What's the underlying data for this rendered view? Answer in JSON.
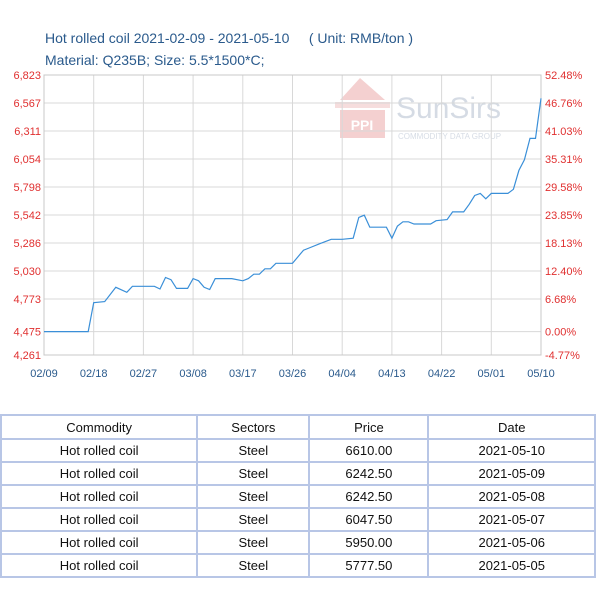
{
  "header": {
    "title_line1": "Hot rolled coil 2021-02-09 - 2021-05-10     ( Unit: RMB/ton )",
    "title_line2": "Material: Q235B; Size: 5.5*1500*C;"
  },
  "watermark": {
    "brand": "SunSirs",
    "tagline": "COMMODITY DATA GROUP",
    "logo_text": "PPI"
  },
  "chart_data": {
    "type": "line",
    "title": "Hot rolled coil 2021-02-09 - 2021-05-10",
    "unit": "RMB/ton",
    "baseline_price": 4475,
    "y_left_ticks": [
      "4,261",
      "4,475",
      "4,773",
      "5,030",
      "5,286",
      "5,542",
      "5,798",
      "6,054",
      "6,311",
      "6,567",
      "6,823"
    ],
    "y_left_values": [
      4261,
      4475,
      4773,
      5030,
      5286,
      5542,
      5798,
      6054,
      6311,
      6567,
      6823
    ],
    "y_right_ticks": [
      "-4.77%",
      "0.00%",
      "6.68%",
      "12.40%",
      "18.13%",
      "23.85%",
      "29.58%",
      "35.31%",
      "41.03%",
      "46.76%",
      "52.48%"
    ],
    "ylim": [
      4261,
      6823
    ],
    "x_ticks": [
      "02/09",
      "02/18",
      "02/27",
      "03/08",
      "03/17",
      "03/26",
      "04/04",
      "04/13",
      "04/22",
      "05/01",
      "05/10"
    ],
    "x_start": "2021-02-09",
    "x_end": "2021-05-10",
    "grid": true,
    "series": [
      {
        "color": "#3a8fd8",
        "points": [
          [
            "2021-02-09",
            4475
          ],
          [
            "2021-02-17",
            4475
          ],
          [
            "2021-02-18",
            4740
          ],
          [
            "2021-02-20",
            4750
          ],
          [
            "2021-02-22",
            4880
          ],
          [
            "2021-02-24",
            4835
          ],
          [
            "2021-02-25",
            4890
          ],
          [
            "2021-03-01",
            4890
          ],
          [
            "2021-03-02",
            4865
          ],
          [
            "2021-03-03",
            4970
          ],
          [
            "2021-03-04",
            4950
          ],
          [
            "2021-03-05",
            4870
          ],
          [
            "2021-03-06",
            4870
          ],
          [
            "2021-03-07",
            4870
          ],
          [
            "2021-03-08",
            4960
          ],
          [
            "2021-03-09",
            4940
          ],
          [
            "2021-03-10",
            4880
          ],
          [
            "2021-03-11",
            4860
          ],
          [
            "2021-03-12",
            4960
          ],
          [
            "2021-03-15",
            4960
          ],
          [
            "2021-03-17",
            4940
          ],
          [
            "2021-03-18",
            4960
          ],
          [
            "2021-03-19",
            5000
          ],
          [
            "2021-03-20",
            5000
          ],
          [
            "2021-03-21",
            5050
          ],
          [
            "2021-03-22",
            5050
          ],
          [
            "2021-03-23",
            5100
          ],
          [
            "2021-03-26",
            5100
          ],
          [
            "2021-03-27",
            5160
          ],
          [
            "2021-03-28",
            5220
          ],
          [
            "2021-03-29",
            5240
          ],
          [
            "2021-03-31",
            5280
          ],
          [
            "2021-04-02",
            5320
          ],
          [
            "2021-04-04",
            5320
          ],
          [
            "2021-04-06",
            5330
          ],
          [
            "2021-04-07",
            5520
          ],
          [
            "2021-04-08",
            5540
          ],
          [
            "2021-04-09",
            5430
          ],
          [
            "2021-04-12",
            5430
          ],
          [
            "2021-04-13",
            5330
          ],
          [
            "2021-04-14",
            5440
          ],
          [
            "2021-04-15",
            5480
          ],
          [
            "2021-04-16",
            5480
          ],
          [
            "2021-04-17",
            5460
          ],
          [
            "2021-04-20",
            5460
          ],
          [
            "2021-04-21",
            5490
          ],
          [
            "2021-04-23",
            5500
          ],
          [
            "2021-04-24",
            5570
          ],
          [
            "2021-04-26",
            5570
          ],
          [
            "2021-04-27",
            5640
          ],
          [
            "2021-04-28",
            5720
          ],
          [
            "2021-04-29",
            5740
          ],
          [
            "2021-04-30",
            5690
          ],
          [
            "2021-05-01",
            5740
          ],
          [
            "2021-05-04",
            5740
          ],
          [
            "2021-05-05",
            5777.5
          ],
          [
            "2021-05-06",
            5950
          ],
          [
            "2021-05-07",
            6047.5
          ],
          [
            "2021-05-08",
            6242.5
          ],
          [
            "2021-05-09",
            6242.5
          ],
          [
            "2021-05-10",
            6610
          ]
        ]
      }
    ]
  },
  "table": {
    "headers": [
      "Commodity",
      "Sectors",
      "Price",
      "Date"
    ],
    "rows": [
      [
        "Hot rolled coil",
        "Steel",
        "6610.00",
        "2021-05-10"
      ],
      [
        "Hot rolled coil",
        "Steel",
        "6242.50",
        "2021-05-09"
      ],
      [
        "Hot rolled coil",
        "Steel",
        "6242.50",
        "2021-05-08"
      ],
      [
        "Hot rolled coil",
        "Steel",
        "6047.50",
        "2021-05-07"
      ],
      [
        "Hot rolled coil",
        "Steel",
        "5950.00",
        "2021-05-06"
      ],
      [
        "Hot rolled coil",
        "Steel",
        "5777.50",
        "2021-05-05"
      ]
    ]
  },
  "colors": {
    "line": "#3a8fd8",
    "grid": "#d8d8d8",
    "axis_label_red": "#e03030",
    "axis_label_green": "#2e9c3a",
    "title_blue": "#2a5a8c",
    "table_border": "#b8c6e6"
  }
}
